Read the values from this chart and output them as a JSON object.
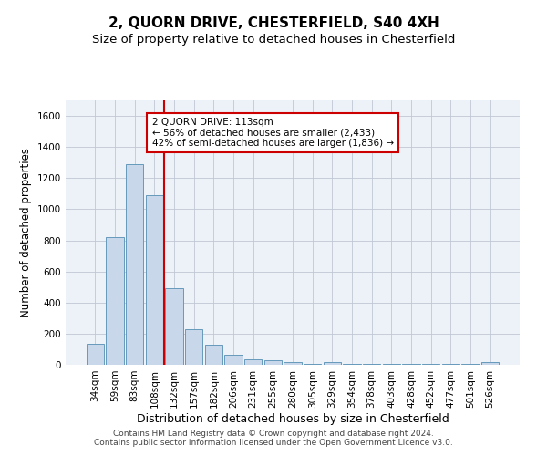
{
  "title": "2, QUORN DRIVE, CHESTERFIELD, S40 4XH",
  "subtitle": "Size of property relative to detached houses in Chesterfield",
  "xlabel": "Distribution of detached houses by size in Chesterfield",
  "ylabel": "Number of detached properties",
  "bar_color": "#c8d8ea",
  "bar_edge_color": "#6699bb",
  "grid_color": "#c0c8d4",
  "bg_color": "#edf2f8",
  "vline_color": "#cc0000",
  "vline_x_index": 3.5,
  "categories": [
    "34sqm",
    "59sqm",
    "83sqm",
    "108sqm",
    "132sqm",
    "157sqm",
    "182sqm",
    "206sqm",
    "231sqm",
    "255sqm",
    "280sqm",
    "305sqm",
    "329sqm",
    "354sqm",
    "378sqm",
    "403sqm",
    "428sqm",
    "452sqm",
    "477sqm",
    "501sqm",
    "526sqm"
  ],
  "values": [
    135,
    820,
    1290,
    1090,
    490,
    230,
    130,
    65,
    38,
    27,
    18,
    5,
    15,
    3,
    3,
    3,
    3,
    3,
    3,
    3,
    15
  ],
  "ylim": [
    0,
    1700
  ],
  "yticks": [
    0,
    200,
    400,
    600,
    800,
    1000,
    1200,
    1400,
    1600
  ],
  "annotation_line1": "2 QUORN DRIVE: 113sqm",
  "annotation_line2": "← 56% of detached houses are smaller (2,433)",
  "annotation_line3": "42% of semi-detached houses are larger (1,836) →",
  "annotation_box_color": "#ffffff",
  "annotation_box_edge": "#cc0000",
  "footer": "Contains HM Land Registry data © Crown copyright and database right 2024.\nContains public sector information licensed under the Open Government Licence v3.0.",
  "title_fontsize": 11,
  "subtitle_fontsize": 9.5,
  "ylabel_fontsize": 8.5,
  "xlabel_fontsize": 9,
  "tick_fontsize": 7.5,
  "footer_fontsize": 6.5,
  "annotation_fontsize": 7.5
}
